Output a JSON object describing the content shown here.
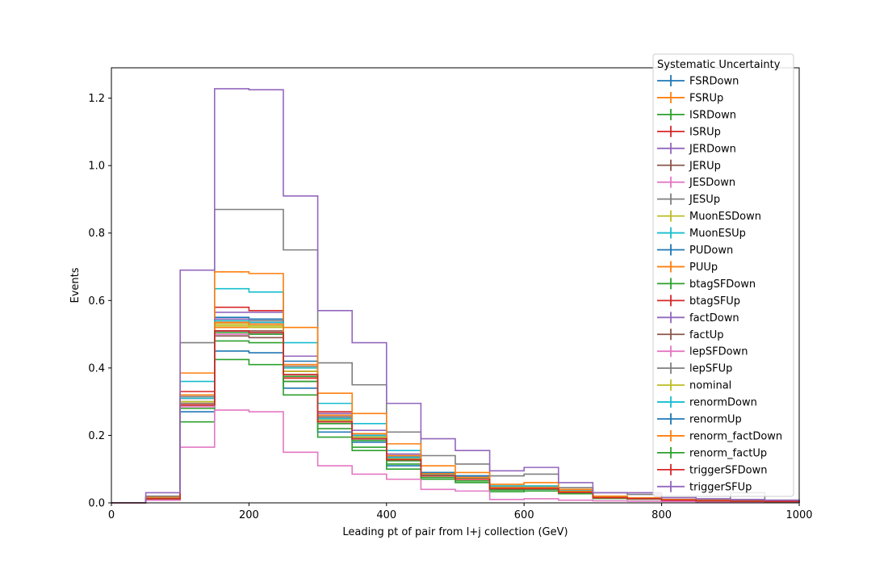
{
  "chart_data": {
    "type": "line",
    "step": true,
    "title": "",
    "xlabel": "Leading pt of pair from l+j collection (GeV)",
    "ylabel": "Events",
    "xlim": [
      0,
      1000
    ],
    "ylim": [
      0,
      1.29
    ],
    "xticks": [
      0,
      200,
      400,
      600,
      800,
      1000
    ],
    "yticks": [
      0.0,
      0.2,
      0.4,
      0.6,
      0.8,
      1.0,
      1.2
    ],
    "grid": false,
    "legend_title": "Systematic Uncertainty",
    "legend_position": "top-right",
    "bin_edges": [
      0,
      50,
      100,
      150,
      200,
      250,
      300,
      350,
      400,
      450,
      500,
      550,
      600,
      650,
      700,
      750,
      800,
      850,
      900,
      950,
      1000
    ],
    "series": [
      {
        "name": "FSRDown",
        "color": "#1f77b4",
        "values": [
          0,
          0.012,
          0.27,
          0.45,
          0.445,
          0.34,
          0.21,
          0.18,
          0.11,
          0.08,
          0.07,
          0.04,
          0.04,
          0.03,
          0.015,
          0.012,
          0.008,
          0.006,
          0.005,
          0.004
        ]
      },
      {
        "name": "FSRUp",
        "color": "#ff7f0e",
        "values": [
          0,
          0.013,
          0.29,
          0.52,
          0.52,
          0.37,
          0.24,
          0.2,
          0.13,
          0.09,
          0.08,
          0.05,
          0.05,
          0.035,
          0.018,
          0.013,
          0.009,
          0.007,
          0.006,
          0.005
        ]
      },
      {
        "name": "ISRDown",
        "color": "#2ca02c",
        "values": [
          0,
          0.01,
          0.24,
          0.425,
          0.41,
          0.32,
          0.195,
          0.155,
          0.1,
          0.07,
          0.06,
          0.033,
          0.035,
          0.027,
          0.013,
          0.011,
          0.007,
          0.005,
          0.004,
          0.003
        ]
      },
      {
        "name": "ISRUp",
        "color": "#d62728",
        "values": [
          0,
          0.014,
          0.33,
          0.58,
          0.57,
          0.37,
          0.27,
          0.2,
          0.14,
          0.085,
          0.075,
          0.045,
          0.045,
          0.035,
          0.018,
          0.013,
          0.009,
          0.007,
          0.006,
          0.005
        ]
      },
      {
        "name": "JERDown",
        "color": "#9467bd",
        "values": [
          0,
          0.013,
          0.31,
          0.565,
          0.565,
          0.435,
          0.265,
          0.215,
          0.145,
          0.085,
          0.075,
          0.045,
          0.045,
          0.035,
          0.018,
          0.013,
          0.009,
          0.007,
          0.006,
          0.005
        ]
      },
      {
        "name": "JERUp",
        "color": "#8c564b",
        "values": [
          0,
          0.012,
          0.3,
          0.495,
          0.49,
          0.36,
          0.24,
          0.19,
          0.13,
          0.08,
          0.07,
          0.045,
          0.045,
          0.032,
          0.016,
          0.012,
          0.008,
          0.006,
          0.005,
          0.004
        ]
      },
      {
        "name": "JESDown",
        "color": "#e377c2",
        "values": [
          0,
          0.008,
          0.165,
          0.275,
          0.27,
          0.15,
          0.11,
          0.085,
          0.07,
          0.04,
          0.035,
          0.01,
          0.012,
          0.008,
          0.006,
          0.005,
          0.004,
          0.003,
          0.003,
          0.002
        ]
      },
      {
        "name": "JESUp",
        "color": "#7f7f7f",
        "values": [
          0,
          0.02,
          0.475,
          0.87,
          0.87,
          0.75,
          0.415,
          0.35,
          0.21,
          0.14,
          0.115,
          0.08,
          0.085,
          0.045,
          0.03,
          0.025,
          0.015,
          0.01,
          0.03,
          0.008
        ]
      },
      {
        "name": "MuonESDown",
        "color": "#bcbd22",
        "values": [
          0,
          0.012,
          0.3,
          0.53,
          0.525,
          0.4,
          0.25,
          0.19,
          0.13,
          0.08,
          0.07,
          0.045,
          0.045,
          0.032,
          0.016,
          0.012,
          0.008,
          0.006,
          0.005,
          0.004
        ]
      },
      {
        "name": "MuonESUp",
        "color": "#17becf",
        "values": [
          0,
          0.015,
          0.36,
          0.635,
          0.625,
          0.475,
          0.295,
          0.235,
          0.155,
          0.09,
          0.08,
          0.05,
          0.05,
          0.038,
          0.018,
          0.014,
          0.01,
          0.007,
          0.006,
          0.005
        ]
      },
      {
        "name": "PUDown",
        "color": "#1f77b4",
        "values": [
          0,
          0.012,
          0.3,
          0.55,
          0.545,
          0.42,
          0.25,
          0.2,
          0.14,
          0.09,
          0.08,
          0.045,
          0.045,
          0.032,
          0.016,
          0.012,
          0.008,
          0.006,
          0.005,
          0.004
        ]
      },
      {
        "name": "PUUp",
        "color": "#ff7f0e",
        "values": [
          0,
          0.016,
          0.385,
          0.685,
          0.68,
          0.52,
          0.325,
          0.265,
          0.175,
          0.11,
          0.09,
          0.055,
          0.06,
          0.04,
          0.02,
          0.015,
          0.01,
          0.008,
          0.006,
          0.005
        ]
      },
      {
        "name": "btagSFDown",
        "color": "#2ca02c",
        "values": [
          0,
          0.012,
          0.28,
          0.48,
          0.475,
          0.36,
          0.22,
          0.165,
          0.115,
          0.075,
          0.065,
          0.038,
          0.04,
          0.03,
          0.015,
          0.012,
          0.008,
          0.006,
          0.005,
          0.004
        ]
      },
      {
        "name": "btagSFUp",
        "color": "#d62728",
        "values": [
          0,
          0.013,
          0.31,
          0.535,
          0.53,
          0.39,
          0.255,
          0.2,
          0.135,
          0.085,
          0.075,
          0.045,
          0.045,
          0.033,
          0.016,
          0.012,
          0.008,
          0.006,
          0.005,
          0.004
        ]
      },
      {
        "name": "factDown",
        "color": "#9467bd",
        "values": [
          0,
          0.013,
          0.32,
          0.545,
          0.54,
          0.41,
          0.26,
          0.205,
          0.14,
          0.085,
          0.075,
          0.045,
          0.045,
          0.034,
          0.017,
          0.013,
          0.009,
          0.006,
          0.005,
          0.004
        ]
      },
      {
        "name": "factUp",
        "color": "#8c564b",
        "values": [
          0,
          0.012,
          0.295,
          0.51,
          0.51,
          0.38,
          0.245,
          0.19,
          0.13,
          0.082,
          0.072,
          0.043,
          0.043,
          0.032,
          0.016,
          0.012,
          0.008,
          0.006,
          0.005,
          0.004
        ]
      },
      {
        "name": "lepSFDown",
        "color": "#e377c2",
        "values": [
          0,
          0.012,
          0.285,
          0.5,
          0.5,
          0.375,
          0.235,
          0.185,
          0.125,
          0.08,
          0.07,
          0.042,
          0.042,
          0.031,
          0.015,
          0.012,
          0.008,
          0.006,
          0.005,
          0.004
        ]
      },
      {
        "name": "lepSFUp",
        "color": "#7f7f7f",
        "values": [
          0,
          0.013,
          0.315,
          0.54,
          0.54,
          0.405,
          0.255,
          0.2,
          0.135,
          0.084,
          0.074,
          0.044,
          0.044,
          0.033,
          0.016,
          0.012,
          0.008,
          0.006,
          0.005,
          0.004
        ]
      },
      {
        "name": "nominal",
        "color": "#bcbd22",
        "values": [
          0,
          0.012,
          0.3,
          0.525,
          0.52,
          0.39,
          0.245,
          0.195,
          0.13,
          0.082,
          0.072,
          0.043,
          0.043,
          0.032,
          0.016,
          0.012,
          0.008,
          0.006,
          0.005,
          0.004
        ]
      },
      {
        "name": "renormDown",
        "color": "#17becf",
        "values": [
          0,
          0.013,
          0.31,
          0.54,
          0.535,
          0.4,
          0.25,
          0.2,
          0.135,
          0.084,
          0.074,
          0.044,
          0.044,
          0.033,
          0.016,
          0.012,
          0.008,
          0.006,
          0.005,
          0.004
        ]
      },
      {
        "name": "renormUp",
        "color": "#1f77b4",
        "values": [
          0,
          0.012,
          0.29,
          0.51,
          0.505,
          0.38,
          0.24,
          0.19,
          0.128,
          0.08,
          0.07,
          0.042,
          0.042,
          0.031,
          0.015,
          0.012,
          0.008,
          0.006,
          0.005,
          0.004
        ]
      },
      {
        "name": "renorm_factDown",
        "color": "#ff7f0e",
        "values": [
          0,
          0.013,
          0.32,
          0.535,
          0.53,
          0.41,
          0.26,
          0.205,
          0.14,
          0.086,
          0.075,
          0.045,
          0.045,
          0.034,
          0.017,
          0.013,
          0.009,
          0.006,
          0.005,
          0.004
        ]
      },
      {
        "name": "renorm_factUp",
        "color": "#2ca02c",
        "values": [
          0,
          0.012,
          0.29,
          0.505,
          0.5,
          0.375,
          0.235,
          0.185,
          0.125,
          0.08,
          0.07,
          0.042,
          0.042,
          0.031,
          0.015,
          0.012,
          0.008,
          0.006,
          0.005,
          0.004
        ]
      },
      {
        "name": "triggerSFDown",
        "color": "#d62728",
        "values": [
          0,
          0.012,
          0.29,
          0.51,
          0.505,
          0.38,
          0.24,
          0.19,
          0.128,
          0.08,
          0.07,
          0.042,
          0.042,
          0.031,
          0.015,
          0.012,
          0.008,
          0.006,
          0.005,
          0.004
        ]
      },
      {
        "name": "triggerSFUp",
        "color": "#9467bd",
        "values": [
          0,
          0.03,
          0.69,
          1.228,
          1.225,
          0.91,
          0.57,
          0.475,
          0.295,
          0.19,
          0.155,
          0.095,
          0.105,
          0.06,
          0.03,
          0.03,
          0.015,
          0.012,
          0.01,
          0.008
        ]
      }
    ]
  }
}
